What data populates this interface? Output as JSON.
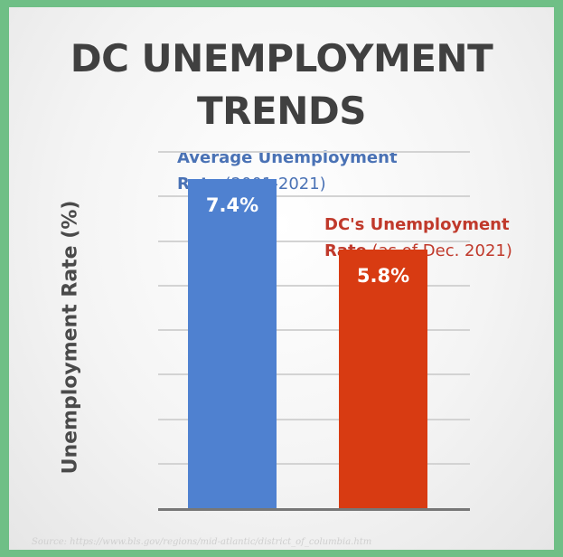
{
  "chart_data": {
    "type": "bar",
    "title_line1": "DC UNEMPLOYMENT",
    "title_line2": "TRENDS",
    "ylabel": "Unemployment Rate (%)",
    "categories": [
      "Average Unemployment Rate (2001-2021)",
      "DC's Unemployment Rate (as of Dec. 2021)"
    ],
    "values": [
      7.4,
      5.8
    ],
    "value_labels": [
      "7.4%",
      "5.8%"
    ],
    "ylim": [
      0,
      8
    ],
    "grid": true,
    "colors": [
      "#4f81d0",
      "#d83b12"
    ],
    "annotations": [
      {
        "line1": "Average Unemployment",
        "line2_prefix": "Rate",
        "line2_suffix": " (2001-2021)",
        "color": "#4a72b5"
      },
      {
        "line1": "DC's Unemployment",
        "line2_prefix": "Rate",
        "line2_suffix": " (as of Dec. 2021)",
        "color": "#c0392b"
      }
    ]
  },
  "source_text": "Source: https://www.bls.gov/regions/mid-atlantic/district_of_columbia.htm"
}
